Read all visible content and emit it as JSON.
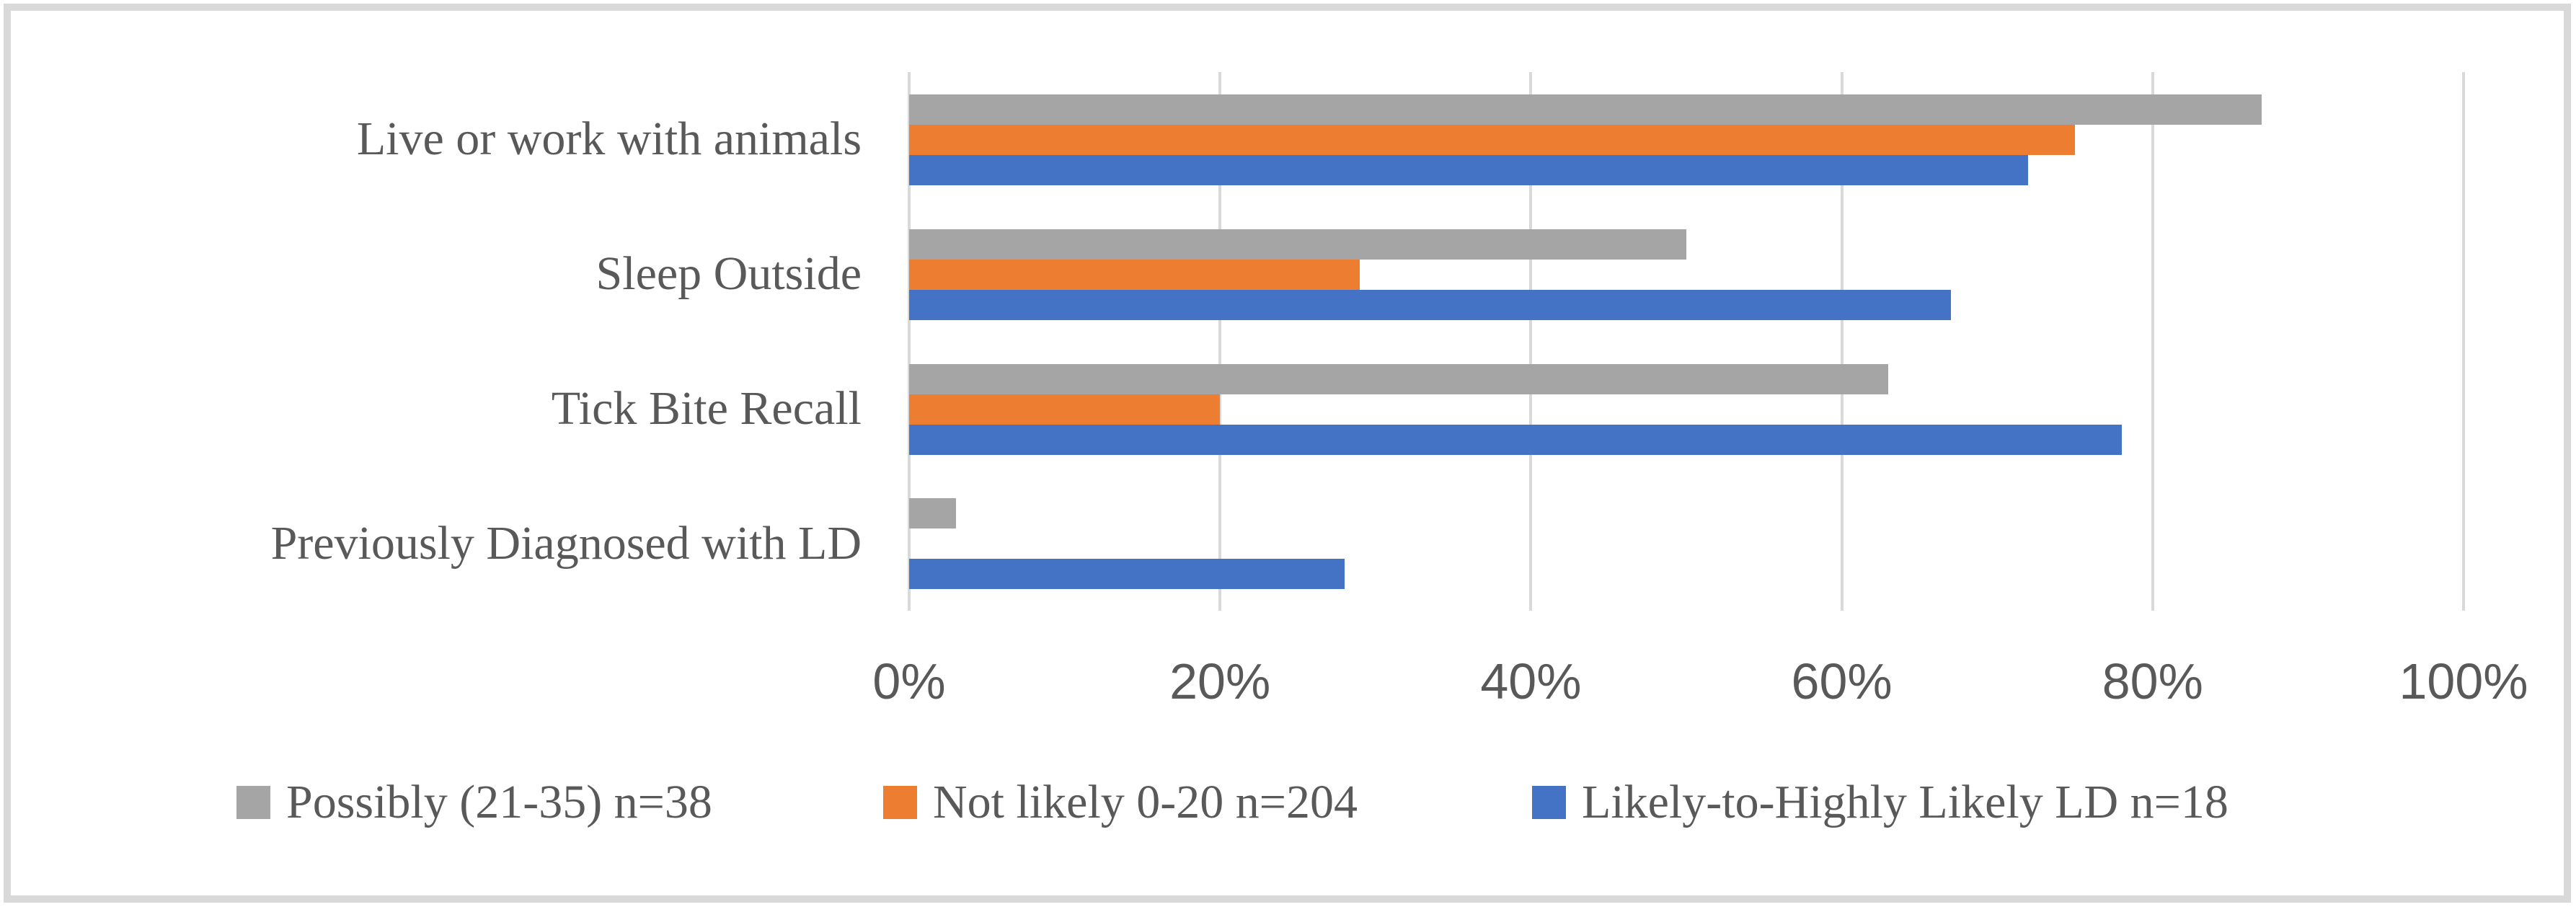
{
  "figure": {
    "background_color": "#FFFFFF",
    "border_color": "#D9D9D9",
    "text_color": "#595959",
    "gridline_color": "#D9D9D9"
  },
  "chart_data": {
    "type": "bar",
    "orientation": "horizontal",
    "title": "",
    "xlabel": "",
    "ylabel": "",
    "xlim": [
      0,
      100
    ],
    "x_ticks": [
      {
        "value": 0,
        "label": "0%"
      },
      {
        "value": 20,
        "label": "20%"
      },
      {
        "value": 40,
        "label": "40%"
      },
      {
        "value": 60,
        "label": "60%"
      },
      {
        "value": 80,
        "label": "80%"
      },
      {
        "value": 100,
        "label": "100%"
      }
    ],
    "grid": "vertical",
    "legend_position": "bottom",
    "categories": [
      "Live or work with animals",
      "Sleep Outside",
      "Tick Bite Recall",
      "Previously Diagnosed with LD"
    ],
    "series": [
      {
        "name": "Possibly (21-35) n=38",
        "color": "#A5A5A5",
        "values": [
          87,
          50,
          63,
          3
        ]
      },
      {
        "name": "Not likely 0-20 n=204",
        "color": "#ED7D31",
        "values": [
          75,
          29,
          20,
          0
        ]
      },
      {
        "name": "Likely-to-Highly Likely LD n=18",
        "color": "#4472C4",
        "values": [
          72,
          67,
          78,
          28
        ]
      }
    ],
    "legend": [
      {
        "label": "Possibly (21-35) n=38",
        "color": "#A5A5A5"
      },
      {
        "label": "Not likely 0-20 n=204",
        "color": "#ED7D31"
      },
      {
        "label": "Likely-to-Highly Likely LD n=18",
        "color": "#4472C4"
      }
    ]
  },
  "layout_values": {
    "legend_item_lefts": [
      328,
      1225,
      2125
    ]
  }
}
